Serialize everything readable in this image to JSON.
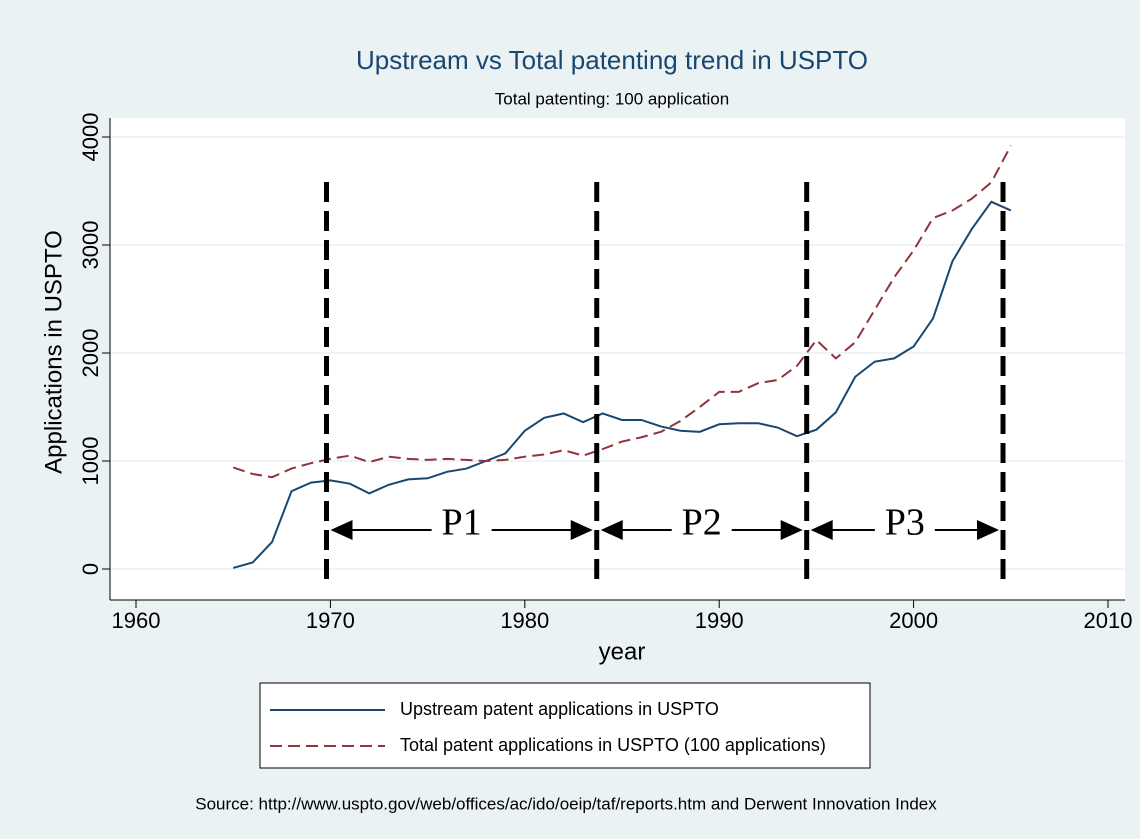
{
  "chart_data": {
    "type": "line",
    "title": "Upstream vs Total patenting trend in USPTO",
    "subtitle": "Total patenting: 100 application",
    "x_label": "year",
    "y_label": "Applications in USPTO",
    "source": "Source: http://www.uspto.gov/web/offices/ac/ido/oeip/taf/reports.htm and Derwent Innovation Index",
    "x": [
      1965,
      1966,
      1967,
      1968,
      1969,
      1970,
      1971,
      1972,
      1973,
      1974,
      1975,
      1976,
      1977,
      1978,
      1979,
      1980,
      1981,
      1982,
      1983,
      1984,
      1985,
      1986,
      1987,
      1988,
      1989,
      1990,
      1991,
      1992,
      1993,
      1994,
      1995,
      1996,
      1997,
      1998,
      1999,
      2000,
      2001,
      2002,
      2003,
      2004,
      2005
    ],
    "series": [
      {
        "name": "Upstream patent applications in USPTO",
        "color": "#1a476f",
        "dash": false,
        "values": [
          10,
          60,
          250,
          720,
          800,
          820,
          790,
          700,
          780,
          830,
          840,
          900,
          930,
          1000,
          1070,
          1280,
          1400,
          1440,
          1360,
          1440,
          1380,
          1380,
          1320,
          1280,
          1270,
          1340,
          1350,
          1350,
          1310,
          1230,
          1290,
          1450,
          1780,
          1920,
          1950,
          2060,
          2320,
          2850,
          3150,
          3400,
          3320
        ]
      },
      {
        "name": "Total patent applications in USPTO (100 applications)",
        "color": "#90353b",
        "dash": true,
        "values": [
          940,
          880,
          850,
          930,
          980,
          1020,
          1050,
          990,
          1040,
          1020,
          1010,
          1020,
          1010,
          1000,
          1010,
          1040,
          1060,
          1100,
          1050,
          1110,
          1180,
          1220,
          1270,
          1370,
          1500,
          1640,
          1640,
          1720,
          1750,
          1880,
          2120,
          1950,
          2100,
          2400,
          2700,
          2950,
          3250,
          3320,
          3430,
          3580,
          3920
        ]
      }
    ],
    "periods": [
      1969.8,
      1983.7,
      1994.5,
      2004.6
    ],
    "period_labels": [
      "P1",
      "P2",
      "P3"
    ],
    "xlim": [
      1960,
      2010
    ],
    "xticks": [
      1960,
      1970,
      1980,
      1990,
      2000,
      2010
    ],
    "ylim": [
      0,
      4000
    ],
    "yticks": [
      0,
      1000,
      2000,
      3000,
      4000
    ],
    "grid": true
  }
}
